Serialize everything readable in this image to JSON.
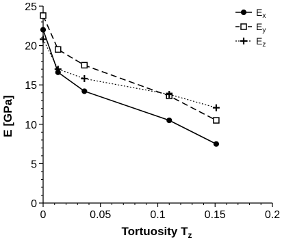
{
  "chart_data": {
    "type": "line",
    "xlabel": "Tortuosity T",
    "xlabel_sub": "z",
    "ylabel": "E [GPa]",
    "xlim": [
      0,
      0.2
    ],
    "ylim": [
      0,
      25
    ],
    "x_ticks": [
      "0",
      "0.05",
      "0.1",
      "0.15",
      "0.2"
    ],
    "y_ticks": [
      "0",
      "5",
      "10",
      "15",
      "20",
      "25"
    ],
    "grid": false,
    "legend_position": "top-right",
    "series": [
      {
        "name": "E",
        "name_sub": "x",
        "marker": "filled-circle",
        "line": "solid",
        "x": [
          0.0,
          0.013,
          0.036,
          0.11,
          0.151
        ],
        "y": [
          22.0,
          16.6,
          14.2,
          10.5,
          7.5
        ]
      },
      {
        "name": "E",
        "name_sub": "y",
        "marker": "open-square",
        "line": "dashed",
        "x": [
          0.0,
          0.013,
          0.036,
          0.11,
          0.151
        ],
        "y": [
          23.8,
          19.5,
          17.5,
          13.6,
          10.5
        ]
      },
      {
        "name": "E",
        "name_sub": "z",
        "marker": "plus",
        "line": "dotted",
        "x": [
          0.0,
          0.013,
          0.036,
          0.11,
          0.151
        ],
        "y": [
          20.8,
          17.0,
          15.8,
          13.8,
          12.1
        ]
      }
    ]
  }
}
